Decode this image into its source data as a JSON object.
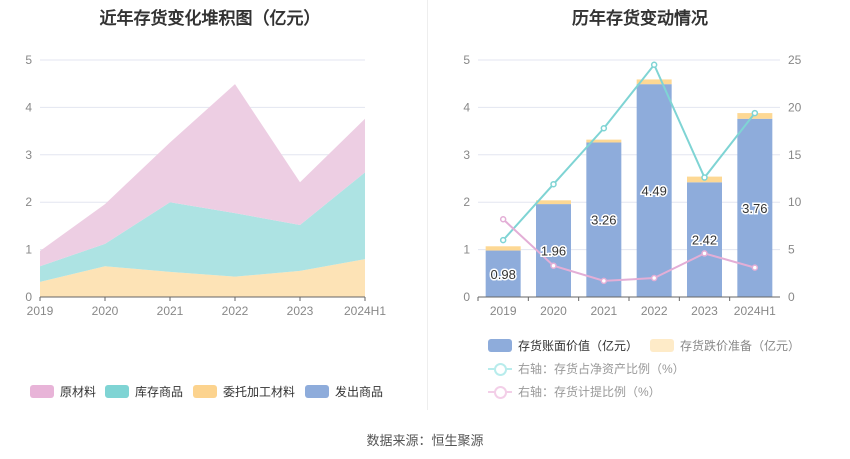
{
  "chart_data": [
    {
      "type": "area",
      "title": "近年存货变化堆积图（亿元）",
      "categories": [
        "2019",
        "2020",
        "2021",
        "2022",
        "2023",
        "2024H1"
      ],
      "ylim": [
        0,
        5
      ],
      "yticks": [
        "0",
        "1",
        "2",
        "3",
        "4",
        "5"
      ],
      "series": [
        {
          "name": "委托加工材料",
          "color": "#fde3b6",
          "values": [
            0.32,
            0.65,
            0.53,
            0.43,
            0.55,
            0.8
          ]
        },
        {
          "name": "库存商品",
          "color": "#ade3e3",
          "values": [
            0.33,
            0.47,
            1.47,
            1.34,
            0.97,
            1.83
          ]
        },
        {
          "name": "原材料",
          "color": "#edcee3",
          "values": [
            0.32,
            0.84,
            1.26,
            2.72,
            0.9,
            1.13
          ]
        },
        {
          "name": "发出商品",
          "color": "#8eacdb",
          "values": [
            0,
            0,
            0,
            0,
            0,
            0
          ]
        }
      ],
      "legend": [
        {
          "name": "原材料",
          "color": "#e8b4d8"
        },
        {
          "name": "库存商品",
          "color": "#7fd4d4"
        },
        {
          "name": "委托加工材料",
          "color": "#fcd38e"
        },
        {
          "name": "发出商品",
          "color": "#8eacdb"
        }
      ]
    },
    {
      "type": "bar+line",
      "title": "历年存货变动情况",
      "categories": [
        "2019",
        "2020",
        "2021",
        "2022",
        "2023",
        "2024H1"
      ],
      "ylim": [
        0,
        5
      ],
      "y2lim": [
        0,
        25
      ],
      "yticks": [
        "0",
        "1",
        "2",
        "3",
        "4",
        "5"
      ],
      "y2ticks": [
        "0",
        "5",
        "10",
        "15",
        "20",
        "25"
      ],
      "bars": [
        {
          "name": "存货账面价值（亿元）",
          "color": "#8eacdb",
          "values": [
            0.98,
            1.96,
            3.26,
            4.49,
            2.42,
            3.76
          ],
          "labels": [
            "0.98",
            "1.96",
            "3.26",
            "4.49",
            "2.42",
            "3.76"
          ]
        },
        {
          "name": "存货跌价准备（亿元）",
          "color": "#fdd894",
          "values": [
            0.09,
            0.08,
            0.06,
            0.1,
            0.12,
            0.12
          ]
        }
      ],
      "lines": [
        {
          "name": "右轴：存货占净资产比例（%）",
          "color": "#7fd4d4",
          "values": [
            6.0,
            11.9,
            17.8,
            24.5,
            12.6,
            19.4
          ]
        },
        {
          "name": "右轴：存货计提比例（%）",
          "color": "#e3aed6",
          "values": [
            8.2,
            3.3,
            1.7,
            2.0,
            4.6,
            3.1
          ]
        }
      ]
    }
  ],
  "source": "数据来源：恒生聚源"
}
